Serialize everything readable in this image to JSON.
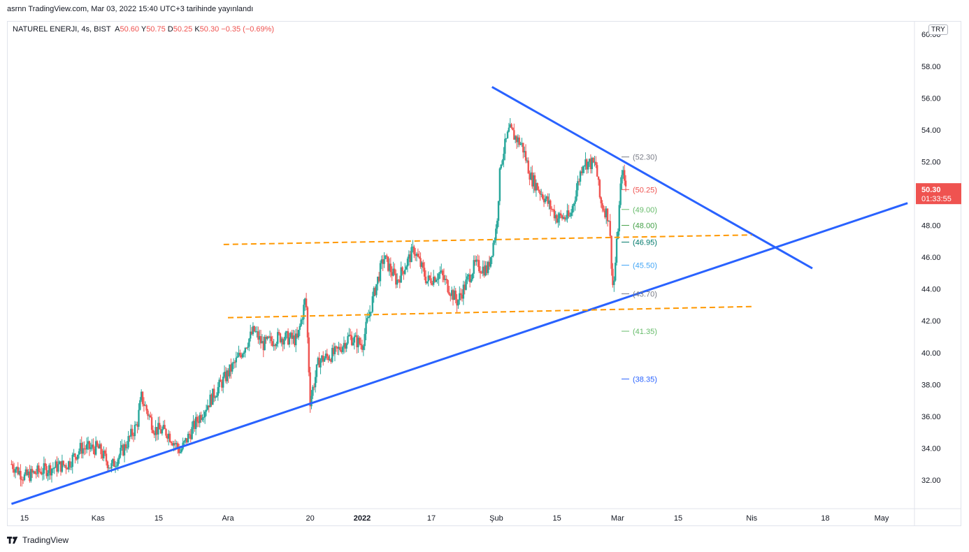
{
  "header": {
    "publish_line": "asrnn TradingView.com, Mar 03, 2022 15:40 UTC+3 tarihinde yayınlandı",
    "symbol": "NATUREL ENERJI, 4s, BIST",
    "open_label": "A",
    "open": "50.60",
    "high_label": "Y",
    "high": "50.75",
    "low_label": "D",
    "low": "50.25",
    "close_label": "K",
    "close": "50.30",
    "change": "−0.35 (−0.69%)",
    "currency": "TRY"
  },
  "footer": {
    "brand": "TradingView",
    "logo_icon": "tradingview-logo-icon"
  },
  "chart_data": {
    "type": "candlestick",
    "title": "NATUREL ENERJI, 4s, BIST",
    "y_axis": {
      "range": [
        30.2,
        60.8
      ],
      "ticks": [
        "32.00",
        "34.00",
        "36.00",
        "38.00",
        "40.00",
        "42.00",
        "44.00",
        "46.00",
        "48.00",
        "50.00",
        "52.00",
        "54.00",
        "56.00",
        "58.00",
        "60.00"
      ]
    },
    "x_axis": {
      "ticks": [
        {
          "label": "15",
          "x": "2021-10-15"
        },
        {
          "label": "Kas",
          "x": "2021-11-01"
        },
        {
          "label": "15",
          "x": "2021-11-15"
        },
        {
          "label": "Ara",
          "x": "2021-12-01"
        },
        {
          "label": "20",
          "x": "2021-12-20"
        },
        {
          "label": "2022",
          "x": "2022-01-01",
          "bold": true
        },
        {
          "label": "17",
          "x": "2022-01-17"
        },
        {
          "label": "Şub",
          "x": "2022-02-01"
        },
        {
          "label": "15",
          "x": "2022-02-15"
        },
        {
          "label": "Mar",
          "x": "2022-03-01"
        },
        {
          "label": "15",
          "x": "2022-03-15"
        },
        {
          "label": "Nis",
          "x": "2022-04-01"
        },
        {
          "label": "18",
          "x": "2022-04-18"
        },
        {
          "label": "May",
          "x": "2022-05-01"
        }
      ]
    },
    "last_price": {
      "value": 50.3,
      "label": "50.30",
      "countdown": "01:33:55",
      "color": "#ef5350"
    },
    "colors": {
      "up": "#26a69a",
      "down": "#ef5350",
      "trendline": "#2962ff",
      "dashed": "#ff9800"
    },
    "price_path": [
      {
        "x": "2021-10-12",
        "y": 33.0
      },
      {
        "x": "2021-10-15",
        "y": 32.2
      },
      {
        "x": "2021-10-19",
        "y": 32.6
      },
      {
        "x": "2021-10-25",
        "y": 33.0
      },
      {
        "x": "2021-10-28",
        "y": 34.0
      },
      {
        "x": "2021-11-01",
        "y": 34.0
      },
      {
        "x": "2021-11-04",
        "y": 32.8
      },
      {
        "x": "2021-11-07",
        "y": 34.0
      },
      {
        "x": "2021-11-10",
        "y": 35.5
      },
      {
        "x": "2021-11-11",
        "y": 37.2
      },
      {
        "x": "2021-11-14",
        "y": 35.2
      },
      {
        "x": "2021-11-17",
        "y": 35.0
      },
      {
        "x": "2021-11-20",
        "y": 33.8
      },
      {
        "x": "2021-11-24",
        "y": 35.8
      },
      {
        "x": "2021-11-28",
        "y": 37.5
      },
      {
        "x": "2021-12-03",
        "y": 39.5
      },
      {
        "x": "2021-12-07",
        "y": 41.4
      },
      {
        "x": "2021-12-09",
        "y": 40.5
      },
      {
        "x": "2021-12-13",
        "y": 41.0
      },
      {
        "x": "2021-12-17",
        "y": 40.8
      },
      {
        "x": "2021-12-19",
        "y": 43.5
      },
      {
        "x": "2021-12-20",
        "y": 37.0
      },
      {
        "x": "2021-12-22",
        "y": 39.5
      },
      {
        "x": "2021-12-26",
        "y": 40.0
      },
      {
        "x": "2021-12-29",
        "y": 41.0
      },
      {
        "x": "2022-01-01",
        "y": 40.5
      },
      {
        "x": "2022-01-04",
        "y": 44.0
      },
      {
        "x": "2022-01-06",
        "y": 46.0
      },
      {
        "x": "2022-01-09",
        "y": 44.5
      },
      {
        "x": "2022-01-13",
        "y": 46.5
      },
      {
        "x": "2022-01-16",
        "y": 44.5
      },
      {
        "x": "2022-01-19",
        "y": 45.0
      },
      {
        "x": "2022-01-23",
        "y": 43.2
      },
      {
        "x": "2022-01-27",
        "y": 45.5
      },
      {
        "x": "2022-01-30",
        "y": 45.2
      },
      {
        "x": "2022-02-01",
        "y": 47.8
      },
      {
        "x": "2022-02-02",
        "y": 52.0
      },
      {
        "x": "2022-02-04",
        "y": 54.0
      },
      {
        "x": "2022-02-07",
        "y": 53.0
      },
      {
        "x": "2022-02-09",
        "y": 51.0
      },
      {
        "x": "2022-02-12",
        "y": 49.8
      },
      {
        "x": "2022-02-15",
        "y": 48.5
      },
      {
        "x": "2022-02-18",
        "y": 48.5
      },
      {
        "x": "2022-02-21",
        "y": 52.0
      },
      {
        "x": "2022-02-24",
        "y": 51.8
      },
      {
        "x": "2022-02-25",
        "y": 49.5
      },
      {
        "x": "2022-02-27",
        "y": 48.5
      },
      {
        "x": "2022-02-28",
        "y": 43.8
      },
      {
        "x": "2022-03-01",
        "y": 47.5
      },
      {
        "x": "2022-03-02",
        "y": 51.5
      },
      {
        "x": "2022-03-03",
        "y": 50.3
      }
    ],
    "levels": [
      {
        "label": "(52.30)",
        "value": 52.3,
        "color": "#787b86"
      },
      {
        "label": "(50.25)",
        "value": 50.25,
        "color": "#ef5350"
      },
      {
        "label": "(49.00)",
        "value": 49.0,
        "color": "#66bb6a"
      },
      {
        "label": "(48.00)",
        "value": 48.0,
        "color": "#43a047"
      },
      {
        "label": "(46.95)",
        "value": 46.95,
        "color": "#00796b"
      },
      {
        "label": "(45.50)",
        "value": 45.5,
        "color": "#42a5f5"
      },
      {
        "label": "(43.70)",
        "value": 43.7,
        "color": "#787b86"
      },
      {
        "label": "(41.35)",
        "value": 41.35,
        "color": "#66bb6a"
      },
      {
        "label": "(38.35)",
        "value": 38.35,
        "color": "#2962ff"
      }
    ],
    "trendlines": [
      {
        "name": "support-trendline",
        "from": {
          "x": "2021-10-12",
          "y": 30.5
        },
        "to": {
          "x": "2022-05-07",
          "y": 49.4
        },
        "style": "solid"
      },
      {
        "name": "resistance-trendline",
        "from": {
          "x": "2022-01-31",
          "y": 56.7
        },
        "to": {
          "x": "2022-04-15",
          "y": 45.3
        },
        "style": "solid"
      },
      {
        "name": "upper-dashed-channel",
        "from": {
          "x": "2021-11-30",
          "y": 46.8
        },
        "to": {
          "x": "2022-04-01",
          "y": 47.4
        },
        "style": "dashed"
      },
      {
        "name": "lower-dashed-channel",
        "from": {
          "x": "2021-12-01",
          "y": 42.2
        },
        "to": {
          "x": "2022-04-01",
          "y": 42.9
        },
        "style": "dashed"
      }
    ]
  }
}
